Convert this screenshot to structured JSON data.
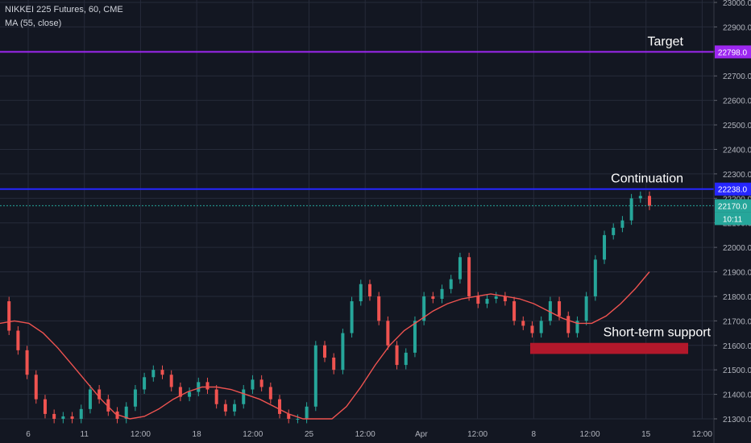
{
  "header": {
    "symbol": "NIKKEI 225 Futures, 60, CME",
    "indicator": "MA (55, close)"
  },
  "chart_data": {
    "type": "candlestick",
    "grid": true,
    "ylim": [
      21300,
      23000
    ],
    "y_ticks": [
      21300,
      21400,
      21500,
      21600,
      21700,
      21800,
      21900,
      22000,
      22100,
      22200,
      22300,
      22400,
      22500,
      22600,
      22700,
      22800,
      22900,
      23000
    ],
    "y_tick_labels": [
      "21300.0",
      "21400.0",
      "21500.0",
      "21600.0",
      "21700.0",
      "21800.0",
      "21900.0",
      "22000.0",
      "22100.0",
      "22200.0",
      "22300.0",
      "22400.0",
      "22500.0",
      "22600.0",
      "22700.0",
      "22800.0",
      "22900.0",
      "23000.0"
    ],
    "x_ticks": [
      "6",
      "11",
      "12:00",
      "18",
      "12:00",
      "25",
      "12:00",
      "Apr",
      "12:00",
      "8",
      "12:00",
      "15",
      "12:00"
    ],
    "price_levels": [
      {
        "value": 22798,
        "label": "22798.0",
        "color": "#9c27f0",
        "style": "solid",
        "annotation": "Target"
      },
      {
        "value": 22238,
        "label": "22238.0",
        "color": "#2626ff",
        "style": "solid",
        "annotation": "Continuation"
      },
      {
        "value": 22170,
        "label": "22170.0",
        "color": "#26a69a",
        "style": "dotted",
        "annotation": ""
      }
    ],
    "last_price": "22170.0",
    "countdown": "10:11",
    "support_zone": {
      "label": "Short-term support",
      "low": 21565,
      "high": 21610,
      "color": "#b2182b"
    },
    "price_series": [
      21780,
      21660,
      21580,
      21480,
      21380,
      21320,
      21300,
      21310,
      21300,
      21340,
      21420,
      21380,
      21330,
      21300,
      21350,
      21420,
      21470,
      21500,
      21480,
      21430,
      21390,
      21410,
      21450,
      21420,
      21360,
      21330,
      21360,
      21420,
      21460,
      21430,
      21380,
      21320,
      21300,
      21300,
      21350,
      21600,
      21550,
      21500,
      21650,
      21780,
      21850,
      21800,
      21700,
      21600,
      21520,
      21570,
      21700,
      21800,
      21790,
      21830,
      21870,
      21960,
      21800,
      21770,
      21790,
      21800,
      21780,
      21700,
      21680,
      21650,
      21700,
      21780,
      21720,
      21650,
      21700,
      21800,
      21950,
      22050,
      22080,
      22110,
      22200,
      22210,
      22170
    ],
    "ma_series": [
      21690,
      21700,
      21690,
      21650,
      21590,
      21520,
      21450,
      21380,
      21320,
      21300,
      21310,
      21340,
      21380,
      21410,
      21430,
      21430,
      21420,
      21400,
      21380,
      21350,
      21320,
      21300,
      21300,
      21300,
      21350,
      21430,
      21520,
      21600,
      21660,
      21700,
      21740,
      21770,
      21790,
      21800,
      21810,
      21800,
      21790,
      21770,
      21740,
      21710,
      21690,
      21690,
      21720,
      21770,
      21830,
      21900
    ]
  }
}
